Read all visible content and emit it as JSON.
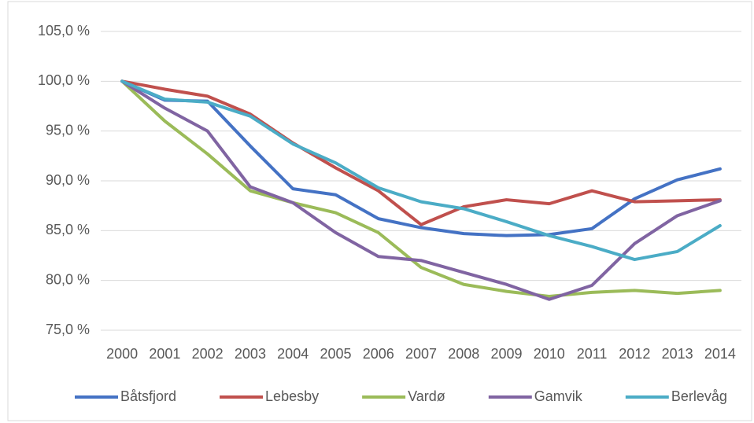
{
  "chart_data": {
    "type": "line",
    "categories": [
      "2000",
      "2001",
      "2002",
      "2003",
      "2004",
      "2005",
      "2006",
      "2007",
      "2008",
      "2009",
      "2010",
      "2011",
      "2012",
      "2013",
      "2014"
    ],
    "series": [
      {
        "name": "Båtsfjord",
        "color": "#4472c4",
        "values": [
          100,
          98.1,
          98.0,
          93.5,
          89.2,
          88.6,
          86.2,
          85.3,
          84.7,
          84.5,
          84.6,
          85.2,
          88.2,
          90.1,
          91.2
        ]
      },
      {
        "name": "Lebesby",
        "color": "#c0504d",
        "values": [
          100,
          99.2,
          98.5,
          96.7,
          93.8,
          91.3,
          89.0,
          85.6,
          87.4,
          88.1,
          87.7,
          89.0,
          87.9,
          88.0,
          88.1
        ]
      },
      {
        "name": "Vardø",
        "color": "#9bbb59",
        "values": [
          100,
          96.0,
          92.7,
          89.0,
          87.8,
          86.8,
          84.8,
          81.3,
          79.6,
          78.9,
          78.4,
          78.8,
          79.0,
          78.7,
          79.0
        ]
      },
      {
        "name": "Gamvik",
        "color": "#8064a2",
        "values": [
          100,
          97.3,
          95.0,
          89.4,
          87.8,
          84.8,
          82.4,
          82.0,
          80.8,
          79.6,
          78.1,
          79.5,
          83.7,
          86.5,
          88.0
        ]
      },
      {
        "name": "Berlevåg",
        "color": "#4bacc6",
        "values": [
          100,
          98.2,
          97.9,
          96.5,
          93.7,
          91.8,
          89.3,
          87.9,
          87.2,
          85.9,
          84.5,
          83.4,
          82.1,
          82.9,
          85.5
        ]
      }
    ],
    "ylim": [
      75,
      105
    ],
    "yticks": [
      {
        "value": 75,
        "label": "75,0 %"
      },
      {
        "value": 80,
        "label": "80,0 %"
      },
      {
        "value": 85,
        "label": "85,0 %"
      },
      {
        "value": 90,
        "label": "90,0 %"
      },
      {
        "value": 95,
        "label": "95,0 %"
      },
      {
        "value": 100,
        "label": "100,0 %"
      },
      {
        "value": 105,
        "label": "105,0 %"
      }
    ],
    "grid": true,
    "legend": "bottom"
  }
}
